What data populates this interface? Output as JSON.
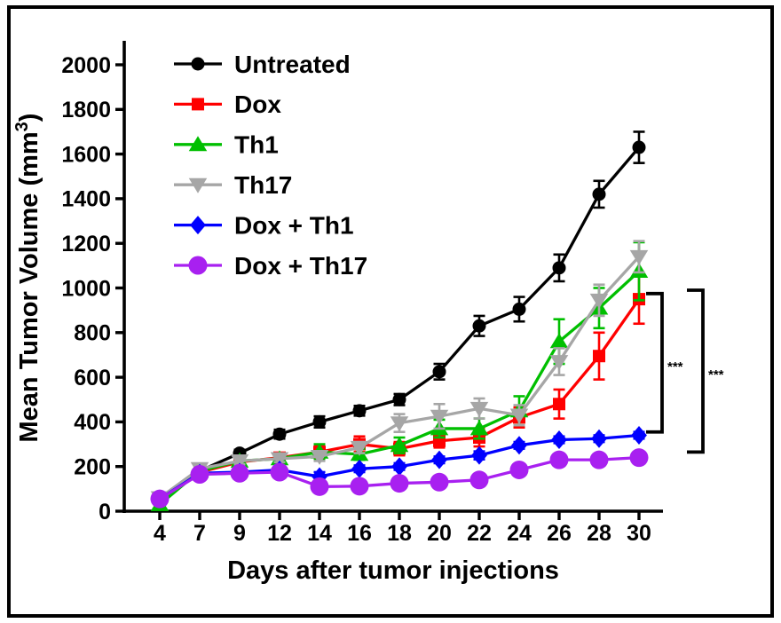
{
  "figure": {
    "frame_color": "#000000",
    "background_color": "#ffffff"
  },
  "chart_data": {
    "type": "line",
    "title": "",
    "xlabel": "Days after tumor injections",
    "ylabel": {
      "prefix": "Mean Tumor Volume (mm",
      "superscript": "3",
      "suffix": ")"
    },
    "x_days": [
      4,
      7,
      9,
      12,
      14,
      16,
      18,
      20,
      22,
      24,
      26,
      28,
      30
    ],
    "x_tick_labels": [
      "4",
      "7",
      "9",
      "12",
      "14",
      "16",
      "18",
      "20",
      "22",
      "24",
      "26",
      "28",
      "30"
    ],
    "ylim": [
      0,
      2000
    ],
    "y_tick_step": 200,
    "y_tick_labels": [
      "0",
      "200",
      "400",
      "600",
      "800",
      "1000",
      "1200",
      "1400",
      "1600",
      "1800",
      "2000"
    ],
    "grid": false,
    "legend_position": "top-left-inside",
    "error_bar_style": "sem-with-caps",
    "series": [
      {
        "name": "Untreated",
        "color": "#000000",
        "marker": "circle",
        "marker_size": 7.5,
        "values": [
          60,
          180,
          260,
          345,
          400,
          450,
          500,
          625,
          830,
          905,
          1090,
          1420,
          1630
        ],
        "errors": [
          10,
          12,
          15,
          20,
          25,
          22,
          25,
          35,
          45,
          55,
          60,
          60,
          70
        ]
      },
      {
        "name": "Dox",
        "color": "#ff0000",
        "marker": "square",
        "marker_size": 7,
        "values": [
          60,
          175,
          220,
          240,
          265,
          300,
          280,
          315,
          330,
          420,
          480,
          695,
          950
        ],
        "errors": [
          10,
          10,
          15,
          18,
          30,
          35,
          30,
          30,
          40,
          45,
          65,
          105,
          110
        ]
      },
      {
        "name": "Th1",
        "color": "#00bf00",
        "marker": "triangle-up",
        "marker_size": 9.5,
        "values": [
          30,
          180,
          225,
          235,
          265,
          255,
          295,
          370,
          370,
          450,
          760,
          910,
          1075
        ],
        "errors": [
          10,
          10,
          15,
          15,
          35,
          25,
          35,
          40,
          45,
          65,
          100,
          90,
          130
        ]
      },
      {
        "name": "Th17",
        "color": "#a6a6a6",
        "marker": "triangle-down",
        "marker_size": 9.5,
        "values": [
          60,
          190,
          225,
          235,
          245,
          285,
          395,
          425,
          460,
          430,
          670,
          945,
          1140
        ],
        "errors": [
          10,
          12,
          15,
          15,
          20,
          25,
          40,
          55,
          45,
          45,
          60,
          70,
          70
        ]
      },
      {
        "name": "Dox + Th1",
        "color": "#0000ff",
        "marker": "diamond",
        "marker_size": 10.5,
        "values": [
          55,
          170,
          175,
          185,
          155,
          190,
          200,
          230,
          250,
          295,
          320,
          325,
          340
        ],
        "errors": [
          8,
          8,
          10,
          10,
          20,
          15,
          15,
          15,
          18,
          15,
          15,
          15,
          15
        ]
      },
      {
        "name": "Dox + Th17",
        "color": "#a820f0",
        "marker": "circle",
        "marker_size": 10.5,
        "values": [
          55,
          165,
          170,
          175,
          110,
          112,
          125,
          130,
          140,
          185,
          230,
          230,
          240
        ],
        "errors": [
          8,
          8,
          10,
          10,
          22,
          20,
          22,
          20,
          22,
          18,
          15,
          15,
          15
        ]
      }
    ],
    "annotations": {
      "brackets": [
        {
          "label": "***",
          "compares": [
            "Dox",
            "Dox + Th1"
          ],
          "value_top": 975,
          "value_bottom": 355
        },
        {
          "label": "***",
          "compares": [
            "Dox",
            "Dox + Th17"
          ],
          "value_top": 990,
          "value_bottom": 265
        }
      ]
    }
  }
}
